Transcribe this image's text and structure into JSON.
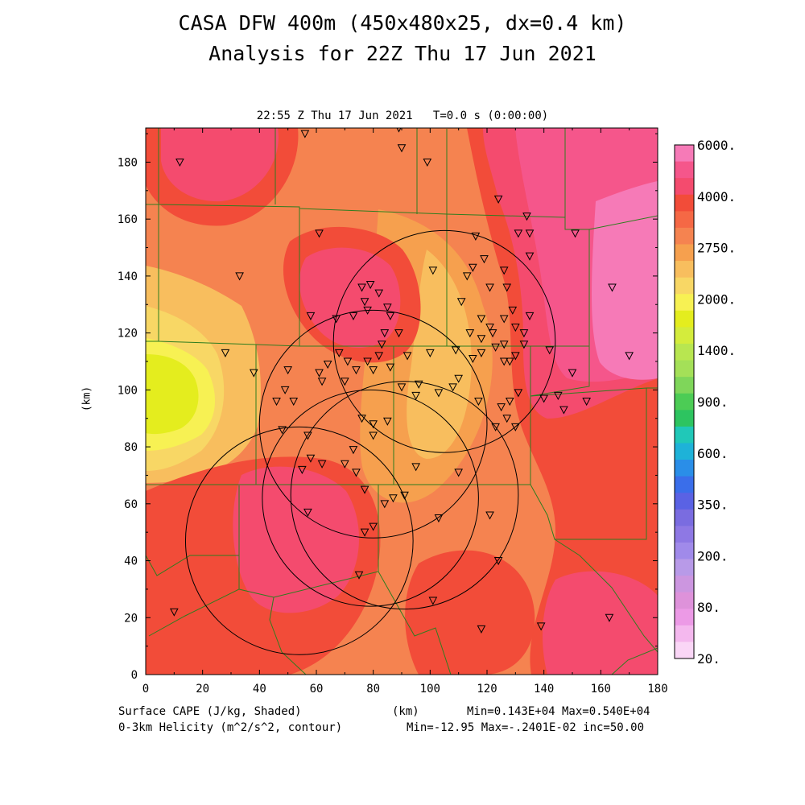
{
  "title_line1": "CASA DFW 400m (450x480x25, dx=0.4 km)",
  "title_line2": "Analysis for 22Z Thu 17 Jun 2021",
  "valid_time": "22:55 Z Thu 17 Jun 2021   T=0.0 s (0:00:00)",
  "field_primary": "Surface CAPE (J/kg, Shaded)",
  "field_contour": "0-3km Helicity (m^2/s^2, contour)",
  "x_unit": "(km)",
  "y_unit": "(km)",
  "stats_primary": "Min=0.143E+04 Max=0.540E+04",
  "stats_contour": "Min=-12.95 Max=-.2401E-02 inc=50.00",
  "colors": {
    "c_1400": "#e4ed1e",
    "c_1800": "#f7f153",
    "c_2000": "#f8d765",
    "c_2250": "#f8be5e",
    "c_2500": "#f6a04e",
    "c_2750": "#f58350",
    "c_3000": "#f56845",
    "c_3500": "#f24c39",
    "c_4000": "#f44b6e",
    "c_4500": "#f5568b",
    "c_6000": "#f67ab7"
  },
  "chart_data": {
    "type": "heatmap",
    "xlim": [
      0,
      180
    ],
    "ylim": [
      0,
      192
    ],
    "x_ticks": [
      "0",
      "20",
      "40",
      "60",
      "80",
      "100",
      "120",
      "140",
      "160",
      "180"
    ],
    "y_ticks": [
      "0",
      "20",
      "40",
      "60",
      "80",
      "100",
      "120",
      "140",
      "160",
      "180"
    ],
    "colorbar_labels": [
      "6000.",
      "4000.",
      "2750.",
      "2000.",
      "1400.",
      "900.",
      "600.",
      "350.",
      "200.",
      "80.",
      "20."
    ],
    "colorbar_colors": [
      "#f67ab7",
      "#f5568b",
      "#f44b6e",
      "#f24c39",
      "#f56845",
      "#f58350",
      "#f6a04e",
      "#f8be5e",
      "#f8d765",
      "#f7f153",
      "#e4ed1e",
      "#d4ec3c",
      "#b8e650",
      "#a4e058",
      "#7fd65a",
      "#4ccc55",
      "#2dc460",
      "#20c8b8",
      "#1eb2d8",
      "#2a8ee8",
      "#3a6eea",
      "#5a62e4",
      "#7a6ce0",
      "#8e78e4",
      "#a08aea",
      "#b89ae8",
      "#cc96e0",
      "#de92da",
      "#ec9ae6",
      "#f4b8ee",
      "#fad6f6"
    ],
    "radar_rings": [
      {
        "cx": 79,
        "cy": 62,
        "r": 38
      },
      {
        "cx": 105,
        "cy": 117,
        "r": 39
      },
      {
        "cx": 80,
        "cy": 88,
        "r": 40
      },
      {
        "cx": 91,
        "cy": 63,
        "r": 40
      },
      {
        "cx": 54,
        "cy": 47,
        "r": 40
      }
    ],
    "stations": [
      [
        12,
        180
      ],
      [
        56,
        190
      ],
      [
        89,
        192
      ],
      [
        90,
        185
      ],
      [
        99,
        180
      ],
      [
        124,
        167
      ],
      [
        61,
        155
      ],
      [
        116,
        154
      ],
      [
        134,
        161
      ],
      [
        119,
        146
      ],
      [
        131,
        155
      ],
      [
        135,
        155
      ],
      [
        115,
        143
      ],
      [
        126,
        142
      ],
      [
        101,
        142
      ],
      [
        113,
        140
      ],
      [
        111,
        131
      ],
      [
        121,
        136
      ],
      [
        135,
        147
      ],
      [
        127,
        136
      ],
      [
        129,
        128
      ],
      [
        126,
        125
      ],
      [
        118,
        118
      ],
      [
        122,
        120
      ],
      [
        126,
        116
      ],
      [
        126,
        110
      ],
      [
        123,
        115
      ],
      [
        118,
        113
      ],
      [
        115,
        111
      ],
      [
        110,
        104
      ],
      [
        117,
        96
      ],
      [
        125,
        94
      ],
      [
        128,
        96
      ],
      [
        131,
        99
      ],
      [
        127,
        90
      ],
      [
        130,
        87
      ],
      [
        123,
        87
      ],
      [
        109,
        114
      ],
      [
        114,
        120
      ],
      [
        118,
        125
      ],
      [
        121,
        122
      ],
      [
        128,
        110
      ],
      [
        130,
        112
      ],
      [
        133,
        116
      ],
      [
        130,
        122
      ],
      [
        133,
        120
      ],
      [
        135,
        126
      ],
      [
        142,
        114
      ],
      [
        145,
        98
      ],
      [
        150,
        106
      ],
      [
        140,
        97
      ],
      [
        147,
        93
      ],
      [
        155,
        96
      ],
      [
        164,
        136
      ],
      [
        170,
        112
      ],
      [
        151,
        155
      ],
      [
        58,
        126
      ],
      [
        67,
        125
      ],
      [
        73,
        126
      ],
      [
        78,
        128
      ],
      [
        85,
        129
      ],
      [
        86,
        126
      ],
      [
        84,
        120
      ],
      [
        83,
        116
      ],
      [
        89,
        120
      ],
      [
        92,
        112
      ],
      [
        82,
        112
      ],
      [
        78,
        110
      ],
      [
        71,
        110
      ],
      [
        68,
        113
      ],
      [
        64,
        109
      ],
      [
        61,
        106
      ],
      [
        62,
        103
      ],
      [
        70,
        103
      ],
      [
        74,
        107
      ],
      [
        80,
        107
      ],
      [
        86,
        108
      ],
      [
        90,
        101
      ],
      [
        95,
        98
      ],
      [
        96,
        102
      ],
      [
        103,
        99
      ],
      [
        100,
        113
      ],
      [
        76,
        90
      ],
      [
        80,
        88
      ],
      [
        85,
        89
      ],
      [
        80,
        84
      ],
      [
        73,
        79
      ],
      [
        70,
        74
      ],
      [
        62,
        74
      ],
      [
        58,
        76
      ],
      [
        55,
        72
      ],
      [
        48,
        86
      ],
      [
        57,
        84
      ],
      [
        52,
        96
      ],
      [
        50,
        107
      ],
      [
        49,
        100
      ],
      [
        46,
        96
      ],
      [
        38,
        106
      ],
      [
        28,
        113
      ],
      [
        33,
        140
      ],
      [
        76,
        136
      ],
      [
        79,
        137
      ],
      [
        77,
        131
      ],
      [
        82,
        134
      ],
      [
        74,
        71
      ],
      [
        77,
        65
      ],
      [
        84,
        60
      ],
      [
        87,
        62
      ],
      [
        91,
        63
      ],
      [
        95,
        73
      ],
      [
        103,
        55
      ],
      [
        110,
        71
      ],
      [
        121,
        56
      ],
      [
        124,
        40
      ],
      [
        118,
        16
      ],
      [
        139,
        17
      ],
      [
        163,
        20
      ],
      [
        101,
        26
      ],
      [
        75,
        35
      ],
      [
        57,
        57
      ],
      [
        77,
        50
      ],
      [
        80,
        52
      ],
      [
        10,
        22
      ],
      [
        108,
        101
      ]
    ]
  }
}
